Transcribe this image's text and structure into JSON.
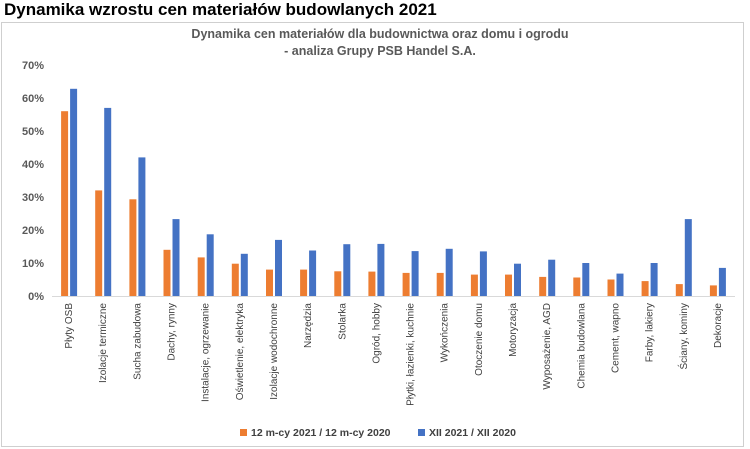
{
  "page": {
    "title": "Dynamika wzrostu cen materiałów budowlanych 2021"
  },
  "chart_data": {
    "type": "bar",
    "title": "Dynamika cen materiałów dla budownictwa oraz domu i ogrodu",
    "subtitle": "- analiza Grupy PSB Handel S.A.",
    "xlabel": "",
    "ylabel": "",
    "ylim": [
      0,
      70
    ],
    "yticks": [
      0,
      10,
      20,
      30,
      40,
      50,
      60,
      70
    ],
    "ytick_labels": [
      "0%",
      "10%",
      "20%",
      "30%",
      "40%",
      "50%",
      "60%",
      "70%"
    ],
    "grid": false,
    "legend_position": "bottom",
    "categories": [
      "Płyty OSB",
      "Izolacje termiczne",
      "Sucha zabudowa",
      "Dachy, rynny",
      "Instalacje, ogrzewanie",
      "Oświetlenie, elektryka",
      "Izolacje wodochronne",
      "Narzędzia",
      "Stolarka",
      "Ogród, hobby",
      "Płytki, łazienki, kuchnie",
      "Wykończenia",
      "Otoczenie domu",
      "Motoryzacja",
      "Wyposażenie, AGD",
      "Chemia budowlana",
      "Cement, wapno",
      "Farby, lakiery",
      "Ściany, kominy",
      "Dekoracje"
    ],
    "series": [
      {
        "name": "12 m-cy 2021 / 12 m-cy 2020",
        "color": "#ED7D31",
        "values": [
          56,
          32,
          29.3,
          14,
          11.7,
          9.8,
          8,
          8,
          7.5,
          7.4,
          7,
          7,
          6.5,
          6.5,
          5.8,
          5.6,
          5,
          4.5,
          3.6,
          3.2
        ]
      },
      {
        "name": "XII 2021 / XII 2020",
        "color": "#4472C4",
        "values": [
          62.8,
          57,
          42,
          23.3,
          18.7,
          12.8,
          17,
          13.8,
          15.7,
          15.8,
          13.6,
          14.3,
          13.5,
          9.8,
          11,
          10,
          6.8,
          10,
          23.3,
          8.5
        ]
      }
    ]
  }
}
